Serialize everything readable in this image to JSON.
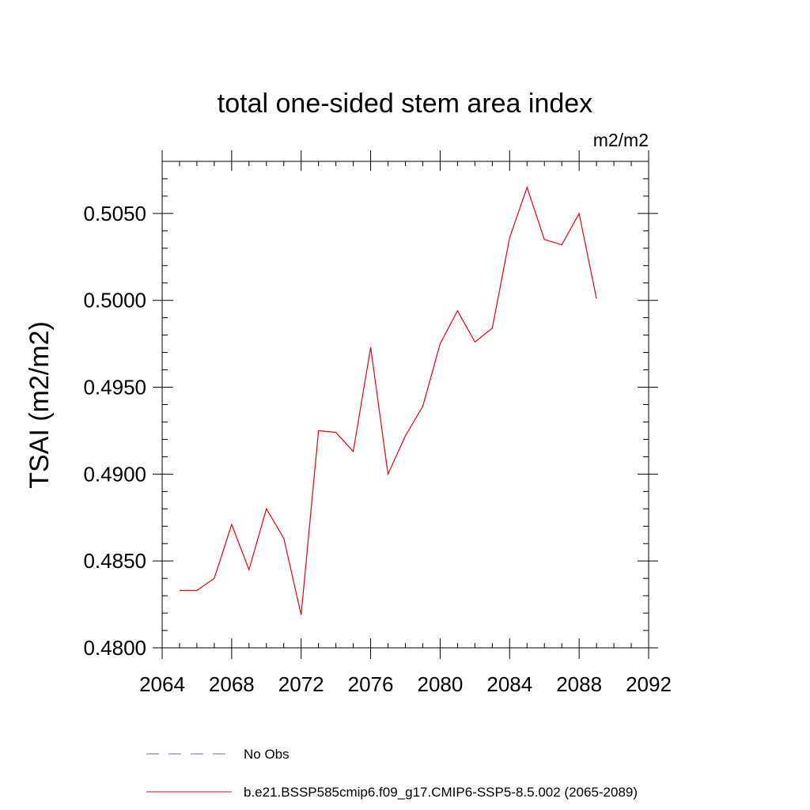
{
  "chart_data": {
    "type": "line",
    "title": "total one-sided stem area index",
    "units_label": "m2/m2",
    "ylabel": "TSAI  (m2/m2)",
    "xlabel": "",
    "xlim": [
      2064,
      2092
    ],
    "ylim": [
      0.48,
      0.508
    ],
    "xticks": [
      2064,
      2068,
      2072,
      2076,
      2080,
      2084,
      2088,
      2092
    ],
    "xtick_labels": [
      "2064",
      "2068",
      "2072",
      "2076",
      "2080",
      "2084",
      "2088",
      "2092"
    ],
    "yticks": [
      0.48,
      0.485,
      0.49,
      0.495,
      0.5,
      0.505
    ],
    "ytick_labels": [
      "0.4800",
      "0.4850",
      "0.4900",
      "0.4950",
      "0.5000",
      "0.5050"
    ],
    "grid": false,
    "legend_position": "bottom",
    "series": [
      {
        "name": "b.e21.BSSP585cmip6.f09_g17.CMIP6-SSP5-8.5.002 (2065-2089)",
        "color": "#e8000b",
        "style": "solid",
        "x": [
          2065,
          2066,
          2067,
          2068,
          2069,
          2070,
          2071,
          2072,
          2073,
          2074,
          2075,
          2076,
          2077,
          2078,
          2079,
          2080,
          2081,
          2082,
          2083,
          2084,
          2085,
          2086,
          2087,
          2088,
          2089
        ],
        "values": [
          0.4833,
          0.4833,
          0.484,
          0.4871,
          0.4845,
          0.488,
          0.4863,
          0.4819,
          0.4925,
          0.4924,
          0.4913,
          0.4973,
          0.49,
          0.4922,
          0.4939,
          0.4975,
          0.4994,
          0.4976,
          0.4984,
          0.5036,
          0.5065,
          0.5035,
          0.5032,
          0.505,
          0.5001
        ]
      }
    ],
    "legend": [
      {
        "label": "No Obs",
        "color": "#6a6ab8",
        "style": "dashed"
      },
      {
        "label": "b.e21.BSSP585cmip6.f09_g17.CMIP6-SSP5-8.5.002 (2065-2089)",
        "color": "#e8000b",
        "style": "solid"
      }
    ]
  }
}
